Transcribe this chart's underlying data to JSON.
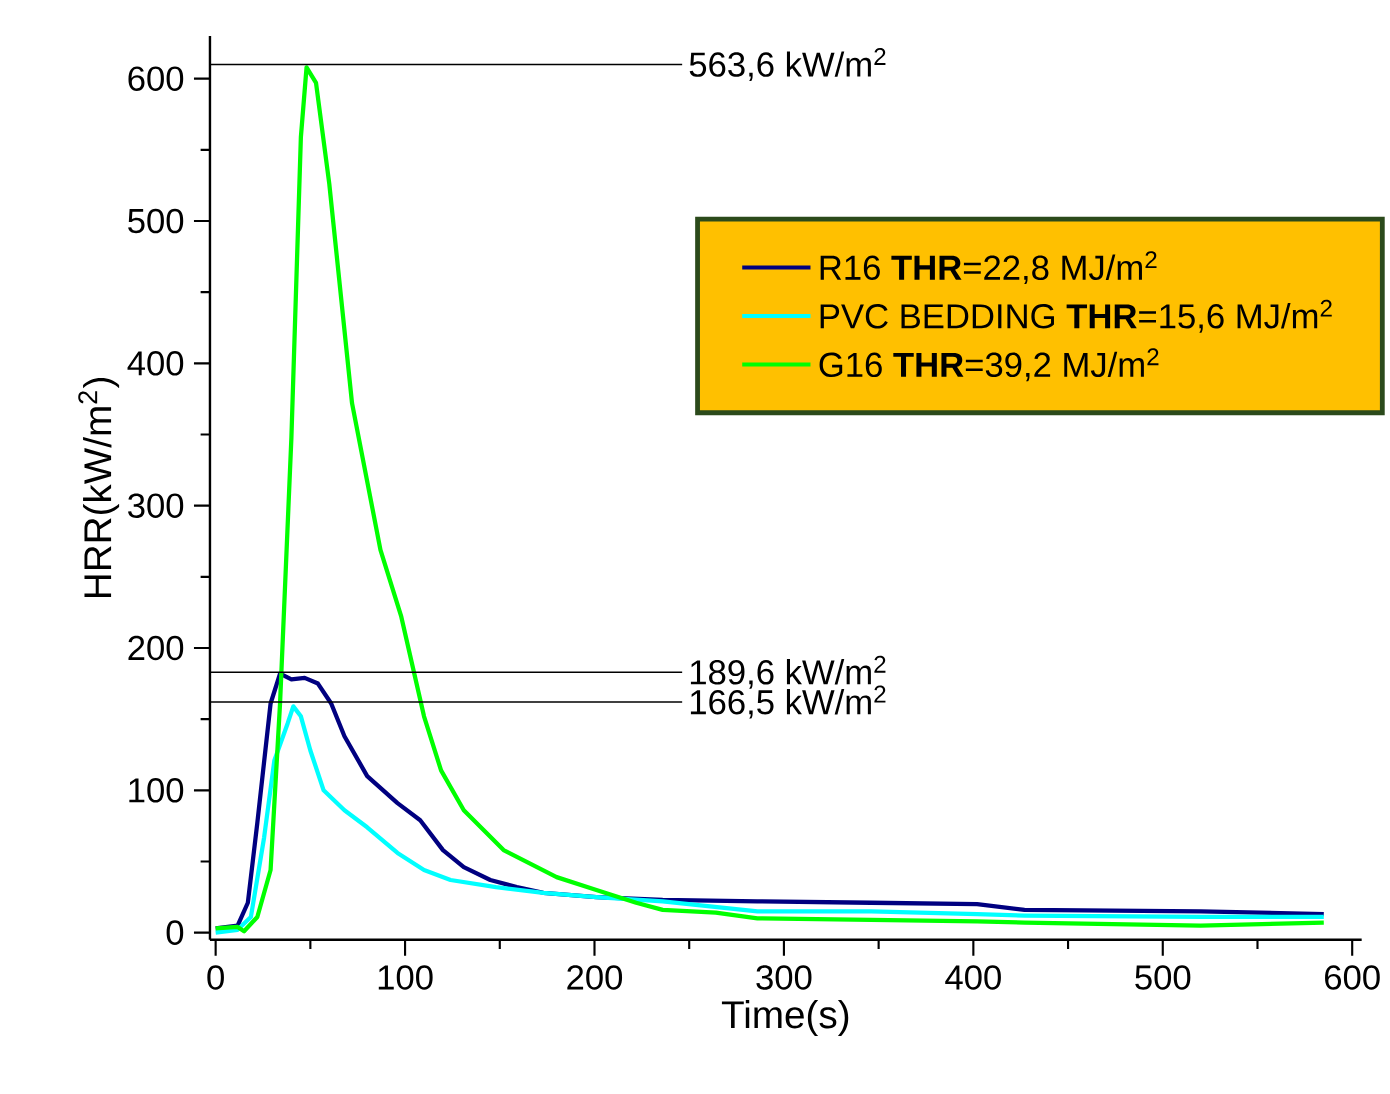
{
  "chart_data": {
    "type": "line",
    "xlabel": "Time(s)",
    "ylabel": "HRR(kW/m$^{2}$)",
    "xlim": [
      -3,
      605
    ],
    "ylim": [
      -5,
      630
    ],
    "xticks": [
      0,
      100,
      200,
      300,
      400,
      500,
      600
    ],
    "yticks": [
      0,
      100,
      200,
      300,
      400,
      500,
      600
    ],
    "legend": "top right",
    "ref_lines": [
      {
        "axis": "y",
        "value": 610,
        "label": "563,6 kW/m$^{2}$",
        "color": "#000000"
      },
      {
        "axis": "y",
        "value": 183,
        "label": "189,6 kW/m$^{2}$",
        "color": "#000000"
      },
      {
        "axis": "y",
        "value": 162,
        "label": "166,5 kW/m$^{2}$",
        "color": "#000000"
      }
    ],
    "series": [
      {
        "name": "R16 **THR**=22,8 MJ/m$^{2}$",
        "color": "#000080",
        "x": [
          0,
          11.6,
          17,
          22,
          29,
          34,
          40,
          47,
          54,
          61,
          68,
          80,
          96,
          108,
          120,
          131,
          145,
          159,
          173,
          201,
          236,
          286,
          346,
          402,
          427,
          520,
          585
        ],
        "values": [
          3,
          5,
          21,
          77,
          161,
          182,
          178,
          179,
          175,
          161,
          138,
          110,
          91,
          79,
          58,
          46,
          37,
          32,
          28,
          25,
          23,
          22,
          21,
          20,
          16,
          15,
          13
        ]
      },
      {
        "name": "PVC BEDDING **THR**=15,6 MJ/m$^{2}$",
        "color": "#00FFFF",
        "x": [
          0,
          11.6,
          18.6,
          25.6,
          31,
          38,
          41,
          45,
          50,
          57,
          68,
          80,
          96,
          110,
          124,
          148,
          173,
          201,
          236,
          286,
          346,
          402,
          427,
          520,
          585
        ],
        "values": [
          0,
          2,
          11,
          67,
          121,
          147,
          159,
          152,
          128,
          100,
          86,
          74,
          56,
          44,
          37,
          32,
          28,
          25,
          22,
          15,
          15,
          13,
          12,
          11,
          11
        ]
      },
      {
        "name": "G16 **THR**=39,2 MJ/m$^{2}$",
        "color": "#00FF00",
        "x": [
          0,
          11.6,
          15,
          22,
          29,
          34,
          40,
          45,
          48,
          53,
          60,
          72,
          87,
          98,
          110,
          119,
          131,
          152,
          180,
          201,
          222,
          236,
          264,
          286,
          346,
          402,
          427,
          520,
          585
        ],
        "values": [
          3,
          4,
          1,
          11,
          44,
          161,
          348,
          559,
          608,
          597,
          526,
          372,
          269,
          222,
          152,
          114,
          86,
          58,
          39,
          30,
          21,
          16,
          14,
          10,
          9,
          8,
          7,
          5,
          7
        ]
      }
    ]
  }
}
